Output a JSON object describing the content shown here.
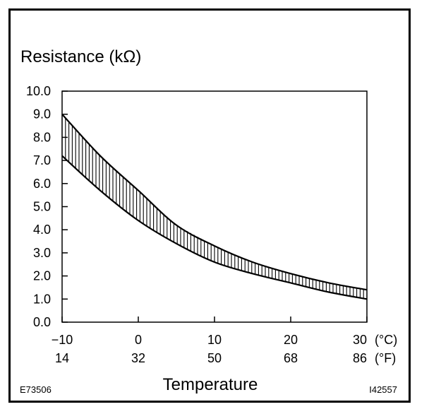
{
  "chart_data": {
    "type": "area",
    "title": "",
    "ylabel": "Resistance (kΩ)",
    "xlabel": "Temperature",
    "ylim": [
      0,
      10
    ],
    "xlim": [
      -10,
      30
    ],
    "y_ticks": [
      "0.0",
      "1.0",
      "2.0",
      "3.0",
      "4.0",
      "5.0",
      "6.0",
      "7.0",
      "8.0",
      "9.0",
      "10.0"
    ],
    "x_ticks_c": [
      {
        "value": -10,
        "label": "−10"
      },
      {
        "value": 0,
        "label": "0"
      },
      {
        "value": 10,
        "label": "10"
      },
      {
        "value": 20,
        "label": "20"
      },
      {
        "value": 30,
        "label": "30"
      }
    ],
    "x_ticks_f": [
      "14",
      "32",
      "50",
      "68",
      "86"
    ],
    "unit_c": "(°C)",
    "unit_f": "(°F)",
    "series": [
      {
        "x": [
          -10,
          -5,
          0,
          5,
          10,
          15,
          20,
          25,
          30
        ],
        "values": [
          9.0,
          7.2,
          5.7,
          4.2,
          3.3,
          2.6,
          2.1,
          1.7,
          1.4
        ]
      },
      {
        "x": [
          -10,
          -5,
          0,
          5,
          10,
          15,
          20,
          25,
          30
        ],
        "values": [
          7.2,
          5.7,
          4.4,
          3.4,
          2.6,
          2.1,
          1.7,
          1.3,
          1.0
        ]
      }
    ],
    "grid": false,
    "hatching": "vertical lines between curves"
  },
  "labels": {
    "left_code": "E73506",
    "right_code": "I42557"
  }
}
